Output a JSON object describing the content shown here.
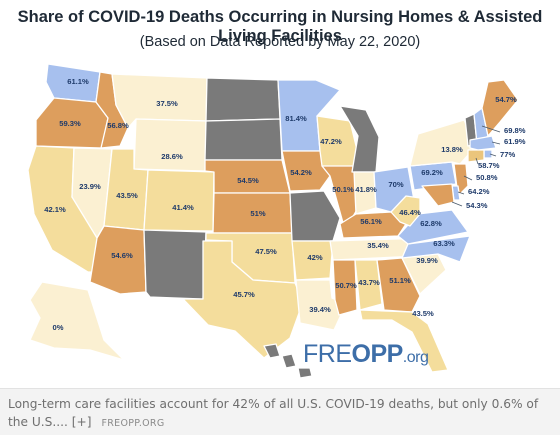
{
  "header": {
    "title": "Share of COVID-19 Deaths Occurring in Nursing Homes & Assisted Living Facilities",
    "subtitle": "(Based on Data Reported by May 22, 2020)"
  },
  "colors": {
    "no_data": "#7a7a7a",
    "blue": "#a7c0ee",
    "cream": "#fbf0d2",
    "light_tan": "#f4dd9c",
    "tan": "#ebc57c",
    "orange": "#dd9e5d"
  },
  "states": [
    {
      "code": "WA",
      "value": "61.1%",
      "color": "blue"
    },
    {
      "code": "OR",
      "value": "59.3%",
      "color": "orange"
    },
    {
      "code": "CA",
      "value": "42.1%",
      "color": "light_tan"
    },
    {
      "code": "NV",
      "value": "23.9%",
      "color": "cream"
    },
    {
      "code": "ID",
      "value": "56.8%",
      "color": "orange"
    },
    {
      "code": "MT",
      "value": "37.5%",
      "color": "cream"
    },
    {
      "code": "WY",
      "value": "28.6%",
      "color": "cream"
    },
    {
      "code": "UT",
      "value": "43.5%",
      "color": "light_tan"
    },
    {
      "code": "AZ",
      "value": "54.6%",
      "color": "orange"
    },
    {
      "code": "CO",
      "value": "41.4%",
      "color": "light_tan"
    },
    {
      "code": "NM",
      "value": "",
      "color": "no_data"
    },
    {
      "code": "ND",
      "value": "",
      "color": "no_data"
    },
    {
      "code": "SD",
      "value": "",
      "color": "no_data"
    },
    {
      "code": "NE",
      "value": "54.5%",
      "color": "orange"
    },
    {
      "code": "KS",
      "value": "51%",
      "color": "orange"
    },
    {
      "code": "OK",
      "value": "47.5%",
      "color": "light_tan"
    },
    {
      "code": "TX",
      "value": "45.7%",
      "color": "light_tan"
    },
    {
      "code": "MN",
      "value": "81.4%",
      "color": "blue"
    },
    {
      "code": "IA",
      "value": "54.2%",
      "color": "orange"
    },
    {
      "code": "MO",
      "value": "",
      "color": "no_data"
    },
    {
      "code": "AR",
      "value": "42%",
      "color": "light_tan"
    },
    {
      "code": "LA",
      "value": "39.4%",
      "color": "cream"
    },
    {
      "code": "WI",
      "value": "47.2%",
      "color": "light_tan"
    },
    {
      "code": "IL",
      "value": "50.1%",
      "color": "orange"
    },
    {
      "code": "MI",
      "value": "",
      "color": "no_data"
    },
    {
      "code": "IN",
      "value": "41.8%",
      "color": "cream"
    },
    {
      "code": "OH",
      "value": "70%",
      "color": "blue"
    },
    {
      "code": "KY",
      "value": "56.1%",
      "color": "orange"
    },
    {
      "code": "TN",
      "value": "35.4%",
      "color": "cream"
    },
    {
      "code": "MS",
      "value": "50.7%",
      "color": "orange"
    },
    {
      "code": "AL",
      "value": "43.7%",
      "color": "light_tan"
    },
    {
      "code": "GA",
      "value": "51.1%",
      "color": "orange"
    },
    {
      "code": "FL",
      "value": "43.5%",
      "color": "light_tan"
    },
    {
      "code": "SC",
      "value": "39.9%",
      "color": "cream"
    },
    {
      "code": "NC",
      "value": "63.3%",
      "color": "blue"
    },
    {
      "code": "VA",
      "value": "62.8%",
      "color": "blue"
    },
    {
      "code": "WV",
      "value": "46.4%",
      "color": "light_tan"
    },
    {
      "code": "PA",
      "value": "69.2%",
      "color": "blue"
    },
    {
      "code": "NY",
      "value": "13.8%",
      "color": "cream"
    },
    {
      "code": "VT",
      "value": "",
      "color": "no_data"
    },
    {
      "code": "NH",
      "value": "69.8%",
      "color": "blue"
    },
    {
      "code": "ME",
      "value": "54.7%",
      "color": "orange"
    },
    {
      "code": "MA",
      "value": "61.9%",
      "color": "blue"
    },
    {
      "code": "RI",
      "value": "77%",
      "color": "blue"
    },
    {
      "code": "CT",
      "value": "58.7%",
      "color": "tan"
    },
    {
      "code": "NJ",
      "value": "50.8%",
      "color": "orange"
    },
    {
      "code": "DE",
      "value": "64.2%",
      "color": "blue"
    },
    {
      "code": "MD",
      "value": "54.3%",
      "color": "orange"
    },
    {
      "code": "AK",
      "value": "0%",
      "color": "cream"
    },
    {
      "code": "HI",
      "value": "",
      "color": "no_data"
    }
  ],
  "logo": {
    "part1": "FRE",
    "part2": "OPP",
    "part3": ".org"
  },
  "caption": {
    "text": "Long-term care facilities account for 42% of all U.S. COVID-19 deaths, but only 0.6% of the U.S.... ",
    "more": "[+]",
    "source": "FREOPP.ORG"
  }
}
